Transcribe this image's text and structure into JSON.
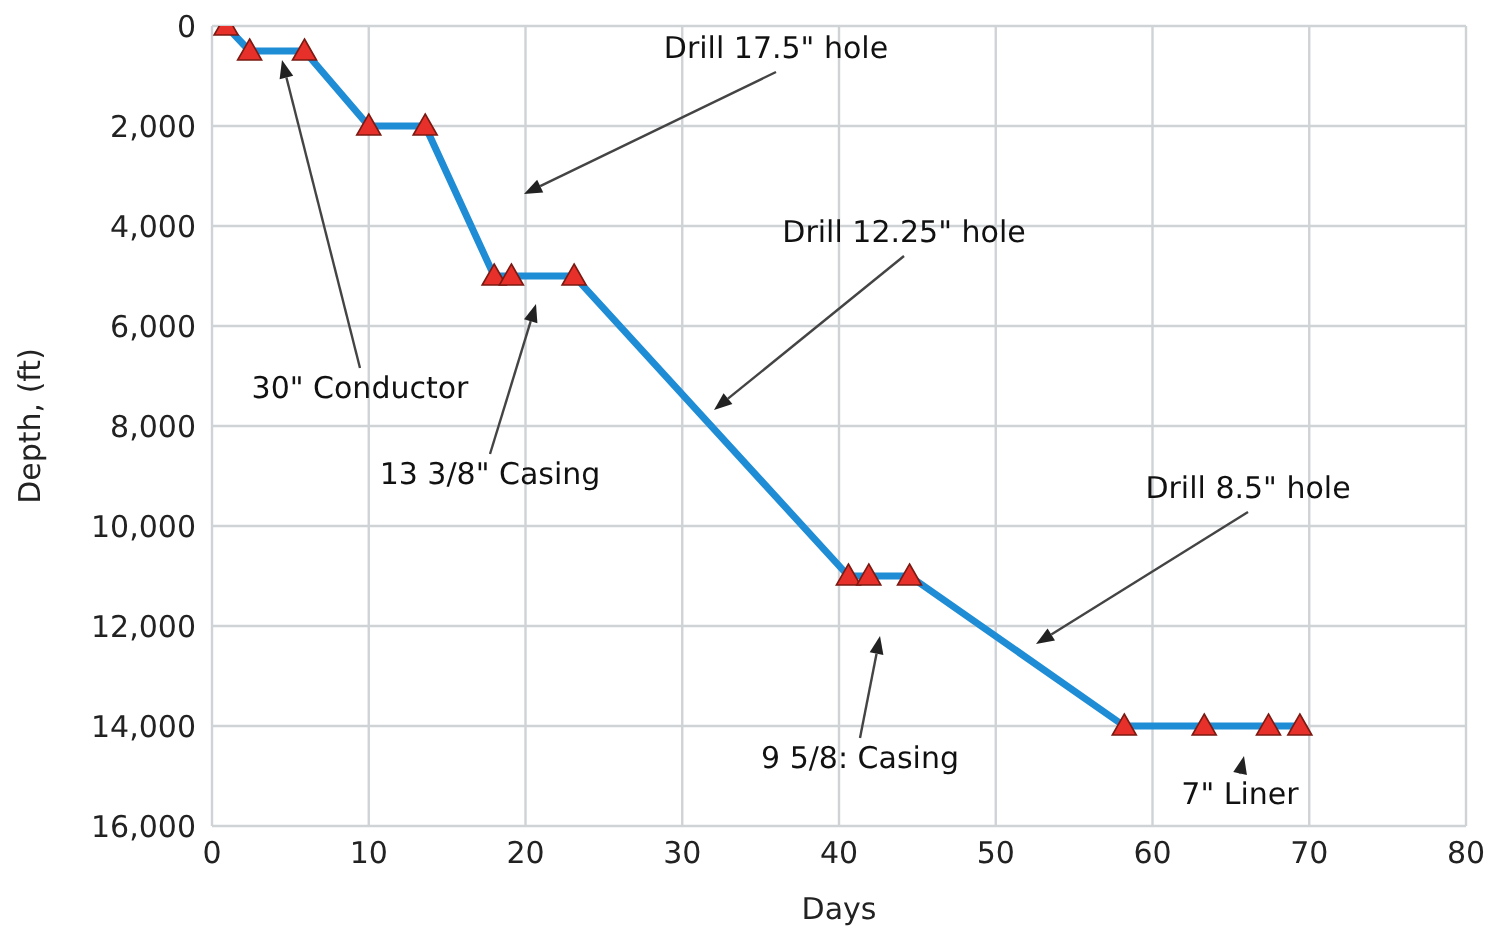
{
  "chart_data": {
    "type": "line",
    "xlabel": "Days",
    "ylabel": "Depth, (ft)",
    "x": [
      0.9,
      2.4,
      5.9,
      10,
      13.6,
      18,
      19.1,
      23.1,
      40.6,
      41.9,
      44.5,
      58.2,
      63.3,
      67.4,
      69.4
    ],
    "series": [
      {
        "color": "#1f8dd6",
        "values": [
          0,
          500,
          500,
          2000,
          2000,
          5000,
          5000,
          5000,
          11000,
          11000,
          11000,
          14000,
          14000,
          14000,
          14000
        ]
      }
    ],
    "marker": "triangle",
    "line_style": "solid",
    "grid": true,
    "legend": false,
    "xlim": [
      0,
      80
    ],
    "xticks": [
      0,
      10,
      20,
      30,
      40,
      50,
      60,
      70,
      80
    ],
    "ylim": [
      16000,
      0
    ],
    "yticks": [
      0,
      {
        "value": 2000,
        "label": "2,000"
      },
      {
        "value": 4000,
        "label": "4,000"
      },
      {
        "value": 6000,
        "label": "6,000"
      },
      {
        "value": 8000,
        "label": "8,000"
      },
      {
        "value": 10000,
        "label": "10,000"
      },
      {
        "value": 12000,
        "label": "12,000"
      },
      {
        "value": 14000,
        "label": "14,000"
      },
      {
        "value": 16000,
        "label": "16,000"
      }
    ],
    "annotations": [
      "30\" Conductor",
      "Drill 17.5\" hole",
      "13 3/8\" Casing",
      "Drill 12.25\" hole",
      "9 5/8: Casing",
      "Drill 8.5\" hole",
      "7\" Liner"
    ]
  }
}
